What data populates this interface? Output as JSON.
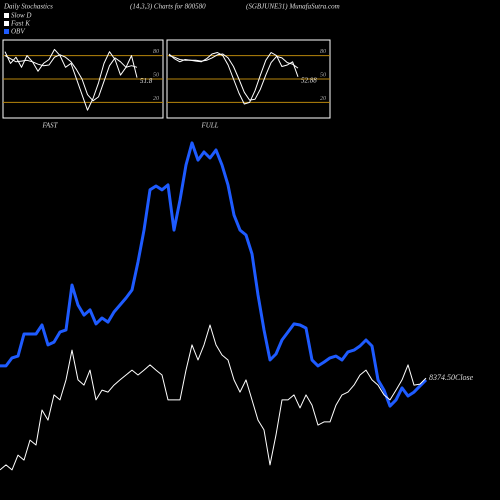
{
  "header": [
    "Daily Stochastics",
    "(14,3,3) Charts for 800580",
    "(SGBJUNE31) MunafaSutra.com"
  ],
  "chart_data": [
    {
      "type": "line",
      "title": "FAST",
      "ylim": [
        0,
        100
      ],
      "yticks": [
        20,
        50,
        80
      ],
      "grid": true,
      "annotation": "51.8",
      "series": [
        {
          "name": "Slow D",
          "color": "#ffffff",
          "values": [
            80,
            76,
            72,
            73,
            74,
            72,
            69,
            67,
            68,
            78,
            81,
            78,
            72,
            62,
            50,
            30,
            22,
            27,
            47,
            67,
            77,
            72,
            65,
            67,
            65
          ]
        },
        {
          "name": "Fast K",
          "color": "#ffffff",
          "values": [
            85,
            70,
            78,
            65,
            80,
            72,
            60,
            70,
            75,
            88,
            80,
            65,
            70,
            50,
            30,
            10,
            25,
            45,
            70,
            85,
            75,
            55,
            65,
            80,
            51.8
          ]
        }
      ]
    },
    {
      "type": "line",
      "title": "FULL",
      "ylim": [
        0,
        100
      ],
      "yticks": [
        20,
        50,
        80
      ],
      "grid": true,
      "annotation": "52.88",
      "series": [
        {
          "color": "#ffffff",
          "values": [
            80,
            78,
            75,
            74,
            74,
            74,
            73,
            74,
            77,
            81,
            82,
            77,
            66,
            50,
            33,
            23,
            24,
            37,
            55,
            71,
            79,
            77,
            71,
            69,
            64
          ]
        },
        {
          "color": "#ffffff",
          "values": [
            82,
            76,
            72,
            75,
            74,
            73,
            72,
            76,
            82,
            84,
            80,
            68,
            50,
            32,
            18,
            20,
            35,
            55,
            74,
            84,
            80,
            66,
            68,
            72,
            52.88
          ]
        }
      ]
    },
    {
      "type": "line",
      "ylim": [
        0,
        100
      ],
      "annotation": "8374.50Close",
      "series": [
        {
          "name": "OBV",
          "color": "#1e5bff",
          "values": [
            32.6,
            32.6,
            34.9,
            35.4,
            41.7,
            41.7,
            41.7,
            44.3,
            38.6,
            39.4,
            42.3,
            42.9,
            55.7,
            50,
            47.1,
            48.6,
            44.6,
            46.3,
            45.1,
            48,
            50,
            52,
            54.3,
            62.3,
            71.4,
            82.9,
            84,
            82.9,
            84.3,
            71.4,
            80,
            90,
            96.3,
            91.4,
            93.7,
            92,
            94.3,
            90,
            84.3,
            75.7,
            71.4,
            70,
            64.6,
            52.9,
            42.9,
            34.3,
            36,
            40,
            42.3,
            44.6,
            44.3,
            43.4,
            34.3,
            32.6,
            33.7,
            34.9,
            35.4,
            34.3,
            36.6,
            37.1,
            38.3,
            40,
            38.3,
            28.6,
            25.7,
            21.1,
            22.9,
            26.3,
            24,
            25.1,
            26.9,
            28.6
          ]
        },
        {
          "color": "#ffffff",
          "values": [
            2.9,
            4.3,
            2.9,
            7.1,
            5.7,
            11.4,
            10,
            20,
            17.1,
            24.3,
            22.9,
            28.6,
            37.1,
            28.6,
            27.1,
            31.4,
            22.9,
            25.7,
            25.1,
            27.1,
            28.6,
            30,
            31.4,
            30,
            31.4,
            32.9,
            31.4,
            30,
            22.9,
            22.9,
            22.9,
            31.4,
            38.6,
            34.3,
            38.6,
            44.3,
            38.6,
            35.7,
            34.3,
            28.6,
            25.1,
            28.6,
            22.9,
            17.1,
            14.3,
            4.3,
            12.9,
            22.9,
            22.9,
            24.3,
            20.6,
            24.3,
            21.4,
            15.7,
            16.6,
            16.6,
            21.4,
            24.3,
            25.1,
            27.1,
            30,
            31.4,
            28.6,
            27.1,
            24.3,
            22.9,
            25.7,
            28.6,
            32.9,
            27.1,
            27.4,
            29.1
          ]
        }
      ]
    }
  ]
}
